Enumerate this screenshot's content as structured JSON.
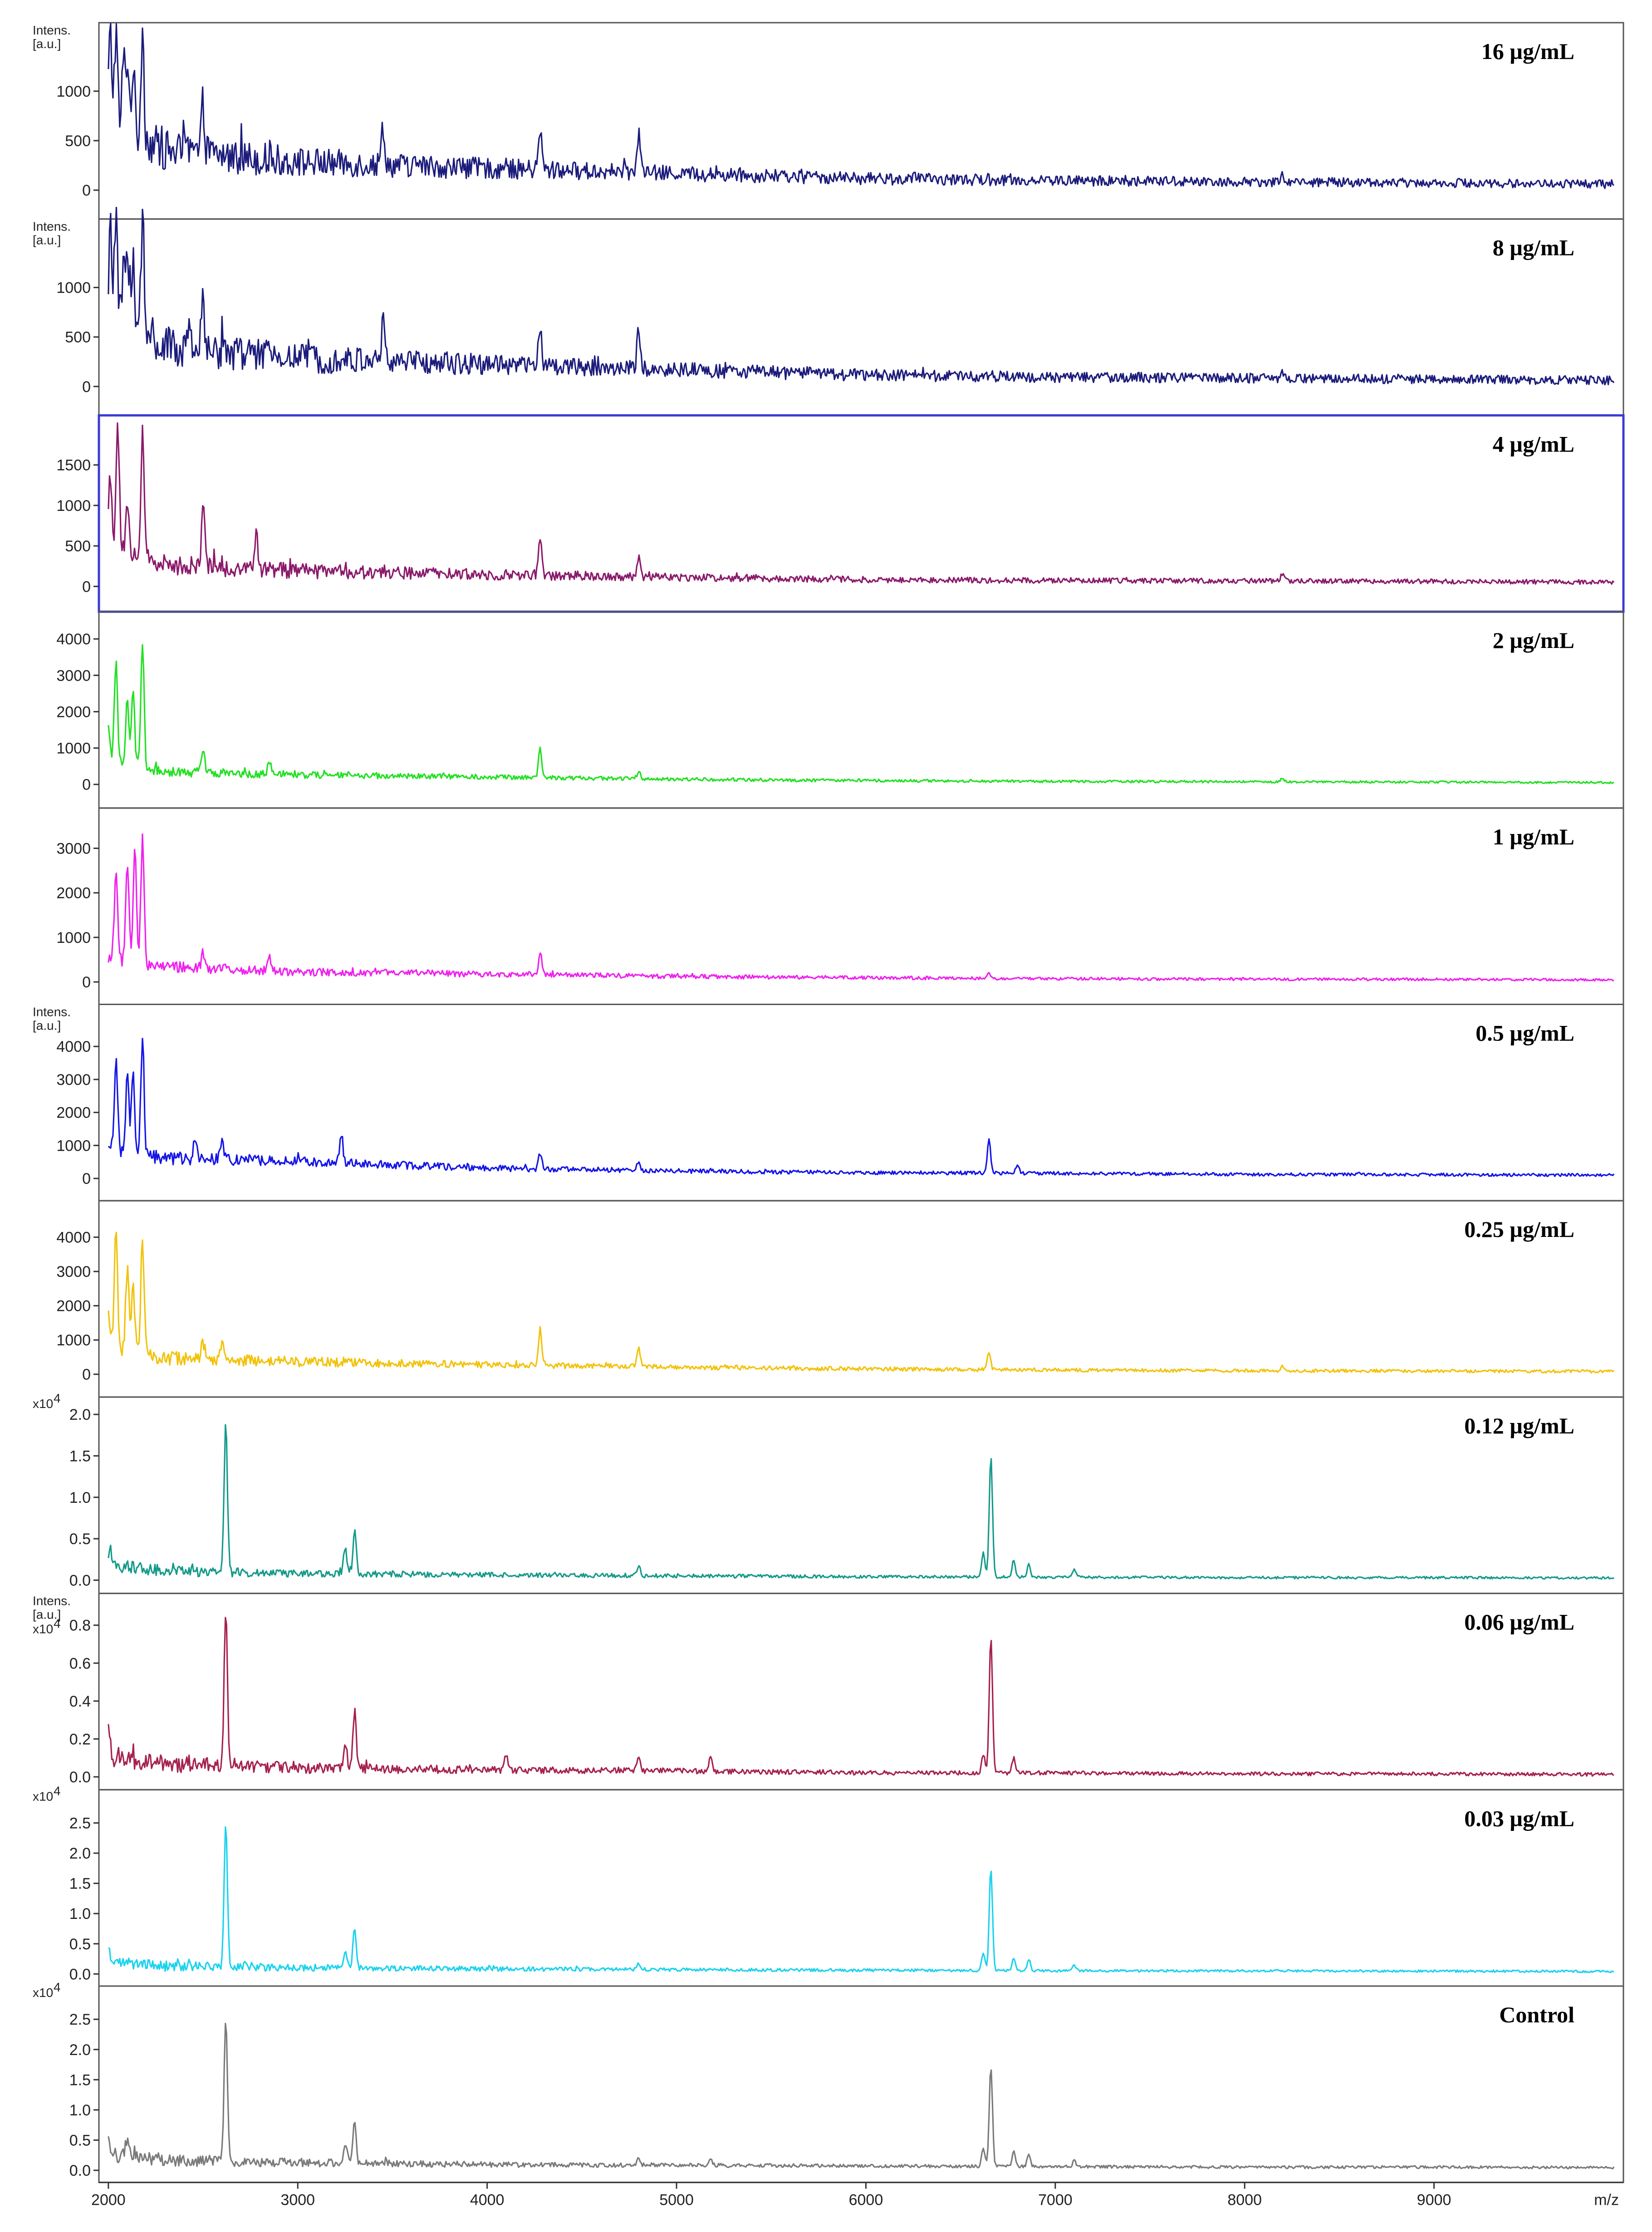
{
  "chart_data": {
    "type": "line",
    "xlabel": "m/z",
    "xlim": [
      1950,
      10000
    ],
    "x_ticks": [
      "2000",
      "3000",
      "4000",
      "5000",
      "6000",
      "7000",
      "8000",
      "9000"
    ],
    "panels": [
      {
        "label": "16 µg/mL",
        "color": "#1c1c7c",
        "intens_label": [
          "Intens.",
          "[a.u.]"
        ],
        "exponent": "",
        "ylim": [
          -200,
          1600
        ],
        "yticks": [
          "0",
          "500",
          "1000"
        ],
        "ytick_values": [
          0,
          500,
          1000
        ],
        "baseline": [
          [
            2000,
            650
          ],
          [
            2300,
            380
          ],
          [
            3000,
            270
          ],
          [
            4000,
            210
          ],
          [
            5000,
            160
          ],
          [
            6000,
            110
          ],
          [
            7000,
            90
          ],
          [
            8000,
            80
          ],
          [
            9000,
            70
          ],
          [
            9950,
            55
          ]
        ],
        "noise": 240,
        "noise_decay": 1800,
        "peaks": [
          [
            2010,
            900
          ],
          [
            2040,
            950
          ],
          [
            2080,
            650
          ],
          [
            2100,
            700
          ],
          [
            2130,
            700
          ],
          [
            2180,
            1100
          ],
          [
            2500,
            500
          ],
          [
            3450,
            400
          ],
          [
            4280,
            400
          ],
          [
            4800,
            400
          ],
          [
            8200,
            70
          ]
        ]
      },
      {
        "label": "8 µg/mL",
        "color": "#1c1c7c",
        "intens_label": [
          "Intens.",
          "[a.u.]"
        ],
        "exponent": "",
        "ylim": [
          -200,
          1600
        ],
        "yticks": [
          "0",
          "500",
          "1000"
        ],
        "ytick_values": [
          0,
          500,
          1000
        ],
        "baseline": [
          [
            2000,
            650
          ],
          [
            2300,
            380
          ],
          [
            3000,
            270
          ],
          [
            4000,
            210
          ],
          [
            5000,
            160
          ],
          [
            6000,
            110
          ],
          [
            7000,
            90
          ],
          [
            8000,
            80
          ],
          [
            9000,
            70
          ],
          [
            9950,
            55
          ]
        ],
        "noise": 240,
        "noise_decay": 1800,
        "peaks": [
          [
            2010,
            900
          ],
          [
            2040,
            950
          ],
          [
            2080,
            650
          ],
          [
            2100,
            700
          ],
          [
            2130,
            700
          ],
          [
            2180,
            1100
          ],
          [
            2500,
            500
          ],
          [
            3450,
            400
          ],
          [
            4280,
            400
          ],
          [
            4800,
            400
          ],
          [
            8200,
            70
          ]
        ]
      },
      {
        "label": "4 µg/mL",
        "color": "#8b1a6b",
        "intens_label": [],
        "exponent": "",
        "ylim": [
          -200,
          2000
        ],
        "yticks": [
          "0",
          "500",
          "1000",
          "1500"
        ],
        "ytick_values": [
          0,
          500,
          1000,
          1500
        ],
        "baseline": [
          [
            2000,
            500
          ],
          [
            2300,
            250
          ],
          [
            3000,
            180
          ],
          [
            4000,
            140
          ],
          [
            5000,
            110
          ],
          [
            6000,
            80
          ],
          [
            7000,
            70
          ],
          [
            8000,
            65
          ],
          [
            9000,
            60
          ],
          [
            9950,
            50
          ]
        ],
        "noise": 150,
        "noise_decay": 1800,
        "peaks": [
          [
            2010,
            900
          ],
          [
            2050,
            1450
          ],
          [
            2100,
            600
          ],
          [
            2180,
            1500
          ],
          [
            2500,
            750
          ],
          [
            2780,
            450
          ],
          [
            4280,
            450
          ],
          [
            4800,
            250
          ],
          [
            8200,
            100
          ]
        ]
      },
      {
        "label": "2 µg/mL",
        "color": "#22e022",
        "intens_label": [],
        "exponent": "",
        "ylim": [
          -400,
          4500
        ],
        "yticks": [
          "0",
          "1000",
          "2000",
          "3000",
          "4000"
        ],
        "ytick_values": [
          0,
          1000,
          2000,
          3000,
          4000
        ],
        "baseline": [
          [
            2000,
            600
          ],
          [
            2300,
            330
          ],
          [
            3000,
            250
          ],
          [
            4000,
            200
          ],
          [
            5000,
            140
          ],
          [
            6000,
            100
          ],
          [
            7000,
            80
          ],
          [
            8000,
            70
          ],
          [
            9000,
            60
          ],
          [
            9950,
            50
          ]
        ],
        "noise": 150,
        "noise_decay": 1800,
        "peaks": [
          [
            2000,
            800
          ],
          [
            2040,
            2800
          ],
          [
            2100,
            1900
          ],
          [
            2130,
            2100
          ],
          [
            2180,
            3400
          ],
          [
            2500,
            600
          ],
          [
            2850,
            350
          ],
          [
            4280,
            800
          ],
          [
            4800,
            200
          ],
          [
            8200,
            100
          ]
        ]
      },
      {
        "label": "1 µg/mL",
        "color": "#ee22ee",
        "intens_label": [],
        "exponent": "",
        "ylim": [
          -300,
          3700
        ],
        "yticks": [
          "0",
          "1000",
          "2000",
          "3000"
        ],
        "ytick_values": [
          0,
          1000,
          2000,
          3000
        ],
        "baseline": [
          [
            2000,
            500
          ],
          [
            2300,
            330
          ],
          [
            3000,
            220
          ],
          [
            4000,
            170
          ],
          [
            5000,
            120
          ],
          [
            6000,
            90
          ],
          [
            7000,
            70
          ],
          [
            8000,
            60
          ],
          [
            9000,
            55
          ],
          [
            9950,
            45
          ]
        ],
        "noise": 150,
        "noise_decay": 1800,
        "peaks": [
          [
            2040,
            2100
          ],
          [
            2100,
            2200
          ],
          [
            2140,
            2600
          ],
          [
            2180,
            2800
          ],
          [
            2500,
            350
          ],
          [
            2850,
            300
          ],
          [
            4280,
            500
          ],
          [
            6650,
            100
          ]
        ]
      },
      {
        "label": "0.5 µg/mL",
        "color": "#1414e8",
        "intens_label": [
          "Intens.",
          "[a.u.]"
        ],
        "exponent": "",
        "ylim": [
          -400,
          5000
        ],
        "yticks": [
          "0",
          "1000",
          "2000",
          "3000",
          "4000"
        ],
        "ytick_values": [
          0,
          1000,
          2000,
          3000,
          4000
        ],
        "baseline": [
          [
            2000,
            900
          ],
          [
            2300,
            600
          ],
          [
            3000,
            500
          ],
          [
            4000,
            300
          ],
          [
            5000,
            220
          ],
          [
            6000,
            170
          ],
          [
            7000,
            150
          ],
          [
            8000,
            120
          ],
          [
            9000,
            110
          ],
          [
            9950,
            100
          ]
        ],
        "noise": 250,
        "noise_decay": 1500,
        "peaks": [
          [
            2040,
            2800
          ],
          [
            2100,
            2200
          ],
          [
            2130,
            2400
          ],
          [
            2180,
            3500
          ],
          [
            2460,
            700
          ],
          [
            2600,
            600
          ],
          [
            3230,
            900
          ],
          [
            4280,
            500
          ],
          [
            4800,
            250
          ],
          [
            6650,
            1000
          ],
          [
            6800,
            250
          ],
          [
            8600,
            60
          ]
        ]
      },
      {
        "label": "0.25 µg/mL",
        "color": "#f2c20a",
        "intens_label": [],
        "exponent": "",
        "ylim": [
          -400,
          4800
        ],
        "yticks": [
          "0",
          "1000",
          "2000",
          "3000",
          "4000"
        ],
        "ytick_values": [
          0,
          1000,
          2000,
          3000,
          4000
        ],
        "baseline": [
          [
            2000,
            800
          ],
          [
            2300,
            450
          ],
          [
            3000,
            350
          ],
          [
            4000,
            270
          ],
          [
            5000,
            200
          ],
          [
            6000,
            150
          ],
          [
            7000,
            120
          ],
          [
            8000,
            100
          ],
          [
            9000,
            90
          ],
          [
            9950,
            80
          ]
        ],
        "noise": 250,
        "noise_decay": 1500,
        "peaks": [
          [
            2000,
            800
          ],
          [
            2040,
            3600
          ],
          [
            2100,
            2400
          ],
          [
            2130,
            2000
          ],
          [
            2180,
            3400
          ],
          [
            2500,
            500
          ],
          [
            2600,
            500
          ],
          [
            4280,
            1100
          ],
          [
            4800,
            550
          ],
          [
            6650,
            500
          ],
          [
            8200,
            150
          ]
        ]
      },
      {
        "label": "0.12 µg/mL",
        "color": "#159a8a",
        "intens_label": [],
        "exponent": "x10",
        "ylim": [
          -0.05,
          2.1
        ],
        "yticks": [
          "0.0",
          "0.5",
          "1.0",
          "1.5",
          "2.0"
        ],
        "ytick_values": [
          0,
          0.5,
          1.0,
          1.5,
          2.0
        ],
        "baseline": [
          [
            2000,
            0.18
          ],
          [
            2300,
            0.1
          ],
          [
            3000,
            0.08
          ],
          [
            4000,
            0.06
          ],
          [
            5000,
            0.05
          ],
          [
            6000,
            0.04
          ],
          [
            7000,
            0.035
          ],
          [
            8000,
            0.03
          ],
          [
            9000,
            0.03
          ],
          [
            9950,
            0.025
          ]
        ],
        "noise": 0.08,
        "noise_decay": 1500,
        "peaks": [
          [
            2010,
            0.2
          ],
          [
            2620,
            1.85
          ],
          [
            3300,
            0.55
          ],
          [
            3250,
            0.3
          ],
          [
            4800,
            0.12
          ],
          [
            6620,
            0.3
          ],
          [
            6660,
            1.45
          ],
          [
            6780,
            0.2
          ],
          [
            6860,
            0.15
          ],
          [
            7100,
            0.1
          ]
        ]
      },
      {
        "label": "0.06 µg/mL",
        "color": "#a6224e",
        "intens_label": [
          "Intens.",
          "[a.u.]"
        ],
        "exponent": "x10",
        "ylim": [
          -0.02,
          0.92
        ],
        "yticks": [
          "0.0",
          "0.2",
          "0.4",
          "0.6",
          "0.8"
        ],
        "ytick_values": [
          0,
          0.2,
          0.4,
          0.6,
          0.8
        ],
        "baseline": [
          [
            2000,
            0.1
          ],
          [
            2300,
            0.06
          ],
          [
            3000,
            0.045
          ],
          [
            4000,
            0.035
          ],
          [
            5000,
            0.03
          ],
          [
            6000,
            0.02
          ],
          [
            7000,
            0.02
          ],
          [
            8000,
            0.015
          ],
          [
            9000,
            0.015
          ],
          [
            9950,
            0.012
          ]
        ],
        "noise": 0.05,
        "noise_decay": 1500,
        "peaks": [
          [
            2000,
            0.15
          ],
          [
            2620,
            0.83
          ],
          [
            3300,
            0.3
          ],
          [
            3250,
            0.15
          ],
          [
            4100,
            0.08
          ],
          [
            4800,
            0.07
          ],
          [
            5180,
            0.08
          ],
          [
            6620,
            0.1
          ],
          [
            6660,
            0.72
          ],
          [
            6780,
            0.08
          ]
        ]
      },
      {
        "label": "0.03 µg/mL",
        "color": "#1cd2ee",
        "intens_label": [],
        "exponent": "x10",
        "ylim": [
          -0.05,
          2.9
        ],
        "yticks": [
          "0.0",
          "0.5",
          "1.0",
          "1.5",
          "2.0",
          "2.5"
        ],
        "ytick_values": [
          0,
          0.5,
          1.0,
          1.5,
          2.0,
          2.5
        ],
        "baseline": [
          [
            2000,
            0.2
          ],
          [
            2300,
            0.12
          ],
          [
            3000,
            0.1
          ],
          [
            4000,
            0.08
          ],
          [
            5000,
            0.07
          ],
          [
            6000,
            0.06
          ],
          [
            7000,
            0.05
          ],
          [
            8000,
            0.05
          ],
          [
            9000,
            0.045
          ],
          [
            9950,
            0.04
          ]
        ],
        "noise": 0.1,
        "noise_decay": 1500,
        "peaks": [
          [
            2000,
            0.3
          ],
          [
            2620,
            2.45
          ],
          [
            3300,
            0.65
          ],
          [
            3250,
            0.3
          ],
          [
            4800,
            0.1
          ],
          [
            6620,
            0.3
          ],
          [
            6660,
            1.7
          ],
          [
            6780,
            0.2
          ],
          [
            6860,
            0.2
          ],
          [
            7100,
            0.1
          ]
        ]
      },
      {
        "label": "Control",
        "color": "#7a7a7a",
        "intens_label": [],
        "exponent": "x10",
        "ylim": [
          -0.05,
          2.9
        ],
        "yticks": [
          "0.0",
          "0.5",
          "1.0",
          "1.5",
          "2.0",
          "2.5"
        ],
        "ytick_values": [
          0,
          0.5,
          1.0,
          1.5,
          2.0,
          2.5
        ],
        "baseline": [
          [
            2000,
            0.25
          ],
          [
            2300,
            0.15
          ],
          [
            3000,
            0.12
          ],
          [
            4000,
            0.09
          ],
          [
            5000,
            0.08
          ],
          [
            6000,
            0.07
          ],
          [
            7000,
            0.06
          ],
          [
            8000,
            0.05
          ],
          [
            9000,
            0.05
          ],
          [
            9950,
            0.045
          ]
        ],
        "noise": 0.12,
        "noise_decay": 1500,
        "peaks": [
          [
            2000,
            0.3
          ],
          [
            2100,
            0.3
          ],
          [
            2620,
            2.4
          ],
          [
            3300,
            0.7
          ],
          [
            3250,
            0.35
          ],
          [
            4800,
            0.1
          ],
          [
            5180,
            0.1
          ],
          [
            6620,
            0.3
          ],
          [
            6660,
            1.65
          ],
          [
            6780,
            0.25
          ],
          [
            6860,
            0.2
          ],
          [
            7100,
            0.1
          ]
        ]
      }
    ]
  }
}
